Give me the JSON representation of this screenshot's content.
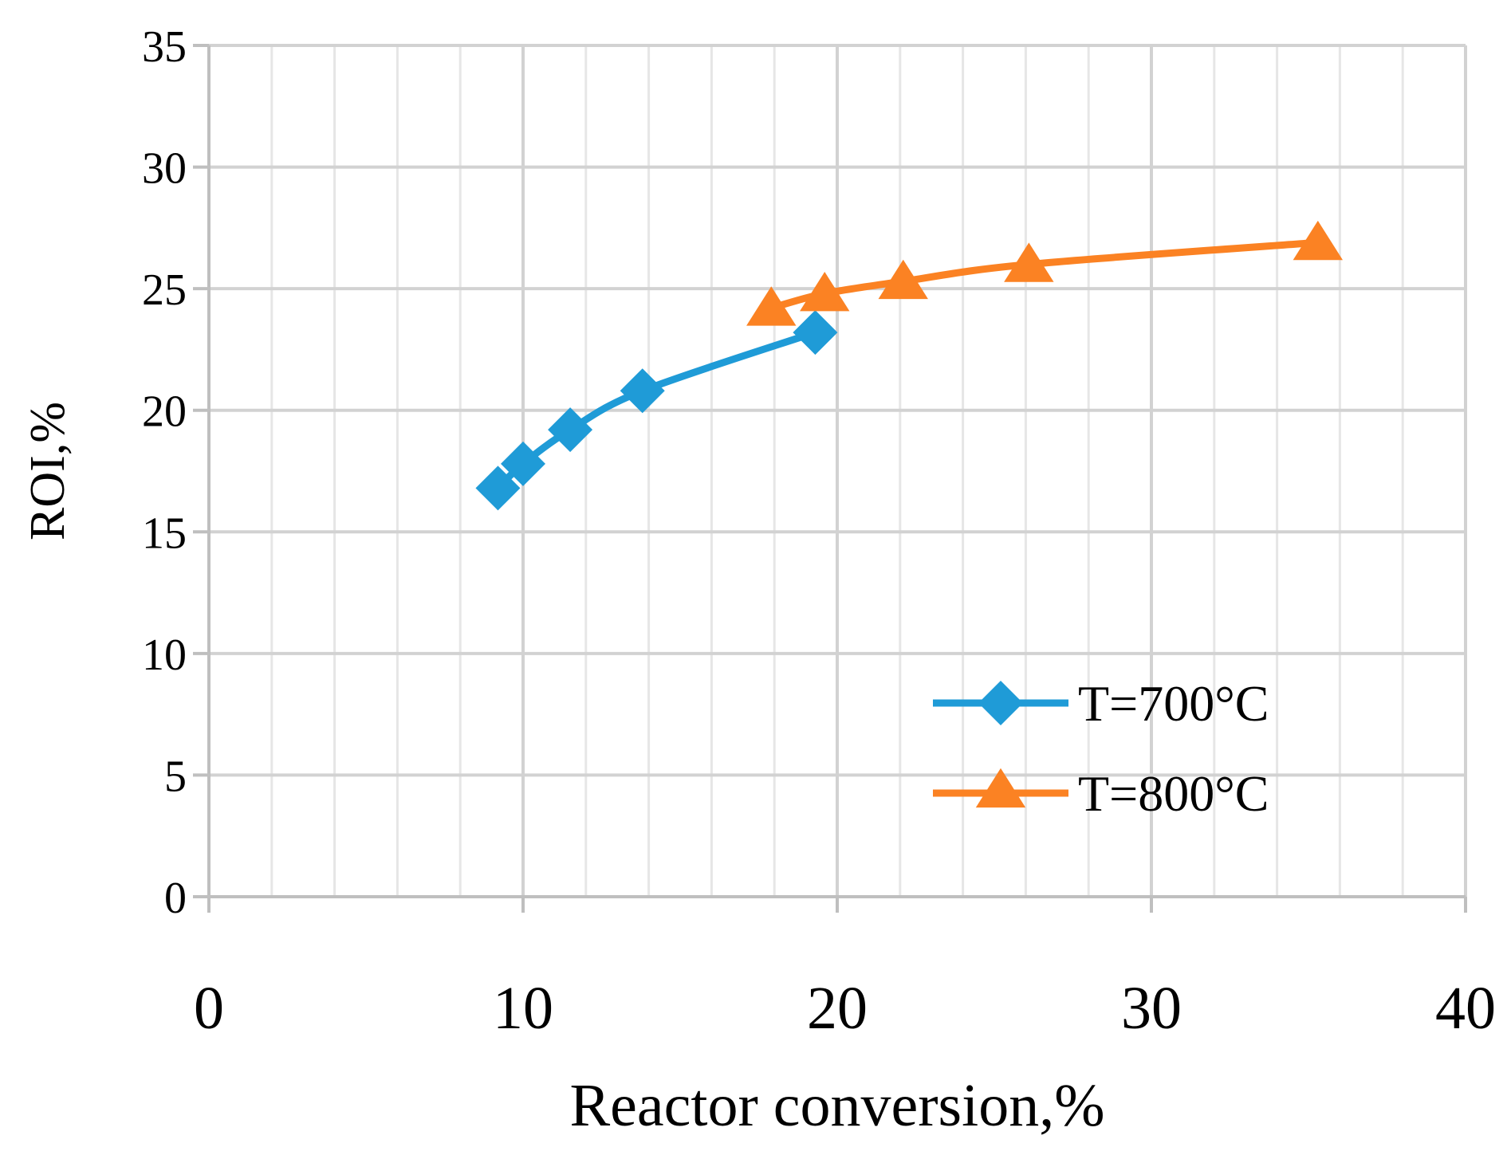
{
  "chart_data": {
    "type": "line",
    "title": "",
    "xlabel": "Reactor conversion,%",
    "ylabel": "ROI,%",
    "xlim": [
      0,
      40
    ],
    "ylim": [
      0,
      35
    ],
    "x_ticks": [
      0,
      10,
      20,
      30,
      40
    ],
    "y_ticks": [
      0,
      5,
      10,
      15,
      20,
      25,
      30,
      35
    ],
    "grid": true,
    "legend_position": "bottom-right",
    "series": [
      {
        "name": "T=700°C",
        "color": "#1f9bd7",
        "marker": "diamond",
        "points": [
          {
            "x": 9.2,
            "y": 16.8
          },
          {
            "x": 10.0,
            "y": 17.8
          },
          {
            "x": 11.5,
            "y": 19.2
          },
          {
            "x": 13.8,
            "y": 20.8
          },
          {
            "x": 19.3,
            "y": 23.2
          }
        ]
      },
      {
        "name": "T=800°C",
        "color": "#fb8223",
        "marker": "triangle",
        "points": [
          {
            "x": 17.9,
            "y": 24.2
          },
          {
            "x": 19.6,
            "y": 24.8
          },
          {
            "x": 22.1,
            "y": 25.3
          },
          {
            "x": 26.1,
            "y": 26.0
          },
          {
            "x": 35.3,
            "y": 26.9
          }
        ]
      }
    ]
  }
}
